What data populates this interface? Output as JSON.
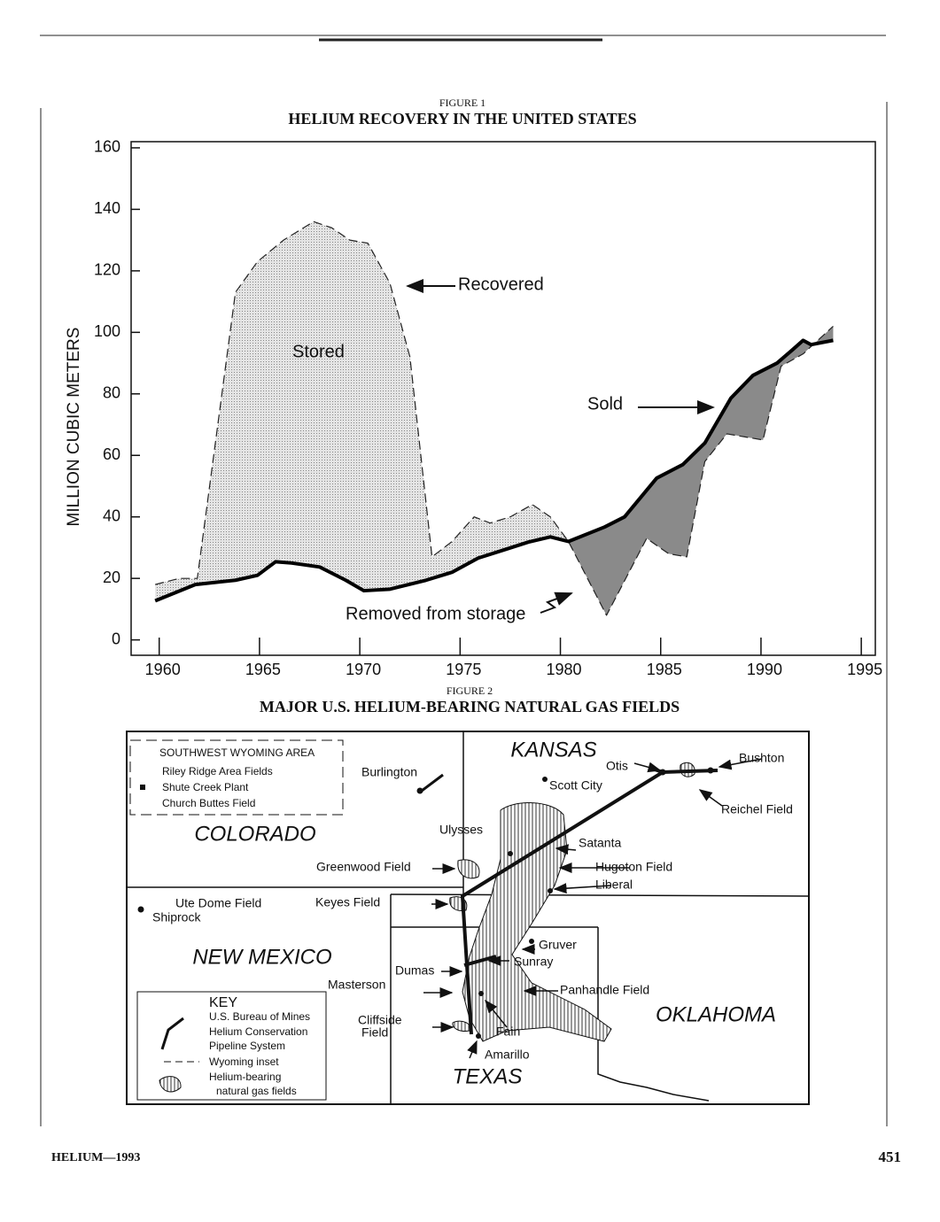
{
  "chart_data": {
    "type": "area-line",
    "subtitle": "FIGURE 1",
    "title": "HELIUM RECOVERY IN THE UNITED STATES",
    "ylabel": "MILLION CUBIC METERS",
    "xlim": [
      1958.6,
      1995.7
    ],
    "ylim": [
      -5,
      162
    ],
    "xticks": [
      1960,
      1965,
      1970,
      1975,
      1980,
      1985,
      1990,
      1995
    ],
    "yticks": [
      0,
      20,
      40,
      60,
      80,
      100,
      120,
      140,
      160
    ],
    "series": [
      {
        "name": "Recovered",
        "color": "#222222",
        "dashed": true,
        "x": [
          1959.8,
          1961,
          1961.9,
          1963.8,
          1964.9,
          1966.2,
          1967.7,
          1968.6,
          1969.5,
          1970.4,
          1971.5,
          1972.5,
          1973.6,
          1974.6,
          1975.7,
          1976.5,
          1977.5,
          1978.6,
          1979.5,
          1980.4,
          1982.3,
          1984.3,
          1985.4,
          1986.3,
          1987.2,
          1988.3,
          1990.1,
          1991,
          1992.1,
          1993.6
        ],
        "values": [
          18,
          20,
          20,
          113,
          123,
          130,
          136,
          134,
          130,
          129,
          116,
          92,
          27,
          32,
          40,
          38,
          40,
          44,
          40,
          32,
          8,
          33,
          28,
          27,
          58,
          67,
          65,
          89,
          93,
          102
        ]
      },
      {
        "name": "Sold",
        "color": "#000000",
        "dashed": false,
        "x": [
          1959.8,
          1961.8,
          1963.8,
          1964.9,
          1965.8,
          1966.6,
          1968,
          1969.3,
          1970.2,
          1971.5,
          1973.3,
          1974.6,
          1975.9,
          1977.3,
          1978.4,
          1979.5,
          1980.4,
          1982.2,
          1983.2,
          1984.8,
          1986.1,
          1987.2,
          1988.5,
          1989.6,
          1990.8,
          1991.6,
          1992.1,
          1992.5,
          1993.6
        ],
        "values": [
          12.7,
          18,
          19.4,
          21,
          25.4,
          25,
          23.7,
          19.4,
          16,
          16.5,
          19.4,
          22,
          26.6,
          29.5,
          31.8,
          33.5,
          32,
          36.7,
          40,
          52.6,
          57,
          64,
          78.6,
          86,
          90,
          94.5,
          97.4,
          96,
          97.4
        ]
      }
    ],
    "annotations": [
      "Stored",
      "Removed from storage"
    ]
  },
  "figure2": {
    "label": "FIGURE 2",
    "title": "MAJOR U.S. HELIUM-BEARING NATURAL GAS FIELDS",
    "inset": {
      "title": "SOUTHWEST WYOMING AREA",
      "items": [
        "Riley Ridge Area Fields",
        "Shute Creek Plant",
        "Church Buttes Field"
      ]
    },
    "states": [
      "COLORADO",
      "KANSAS",
      "NEW MEXICO",
      "OKLAHOMA",
      "TEXAS"
    ],
    "places": [
      "Burlington",
      "Scott City",
      "Ulysses",
      "Satanta",
      "Hugoton Field",
      "Liberal",
      "Otis",
      "Bushton",
      "Reichel Field",
      "Greenwood Field",
      "Keyes Field",
      "Ute Dome Field",
      "Shiprock",
      "Gruver",
      "Sunray",
      "Dumas",
      "Masterson",
      "Panhandle Field",
      "Fain",
      "Amarillo"
    ],
    "cliffside": [
      "Cliffside",
      "Field"
    ],
    "key": {
      "title": "KEY",
      "pipeline": [
        "U.S. Bureau of Mines",
        "Helium Conservation",
        "Pipeline System"
      ],
      "inset": "Wyoming inset",
      "fields": [
        "Helium-bearing",
        "natural gas fields"
      ]
    }
  },
  "footer": {
    "left": "HELIUM—1993",
    "right": "451"
  }
}
